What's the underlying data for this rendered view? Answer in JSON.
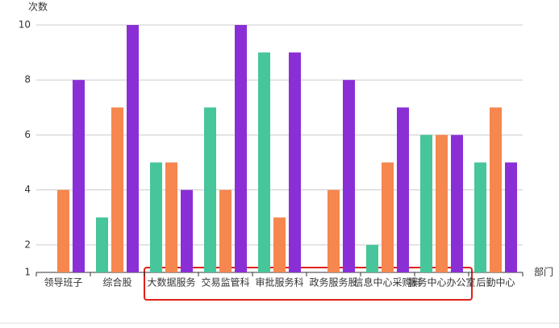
{
  "chart_data": {
    "type": "bar",
    "y_label": "次数",
    "x_label": "部门",
    "categories": [
      "领导班子",
      "综合股",
      "大数据服务",
      "交易监管科",
      "审批服务科",
      "政务服务股",
      "信息中心采购科",
      "服务中心办公室",
      "后勤中心"
    ],
    "series": [
      {
        "color": "#47c59b",
        "values": [
          1,
          3,
          5,
          7,
          9,
          1,
          2,
          6,
          5
        ]
      },
      {
        "color": "#f5874f",
        "values": [
          4,
          7,
          5,
          4,
          3,
          4,
          5,
          6,
          7
        ]
      },
      {
        "color": "#8a2fd6",
        "values": [
          8,
          10,
          4,
          10,
          9,
          8,
          7,
          6,
          5
        ]
      }
    ],
    "ylim": [
      1,
      10
    ],
    "yticks": [
      1,
      2,
      4,
      6,
      8,
      10
    ],
    "grid": true
  }
}
